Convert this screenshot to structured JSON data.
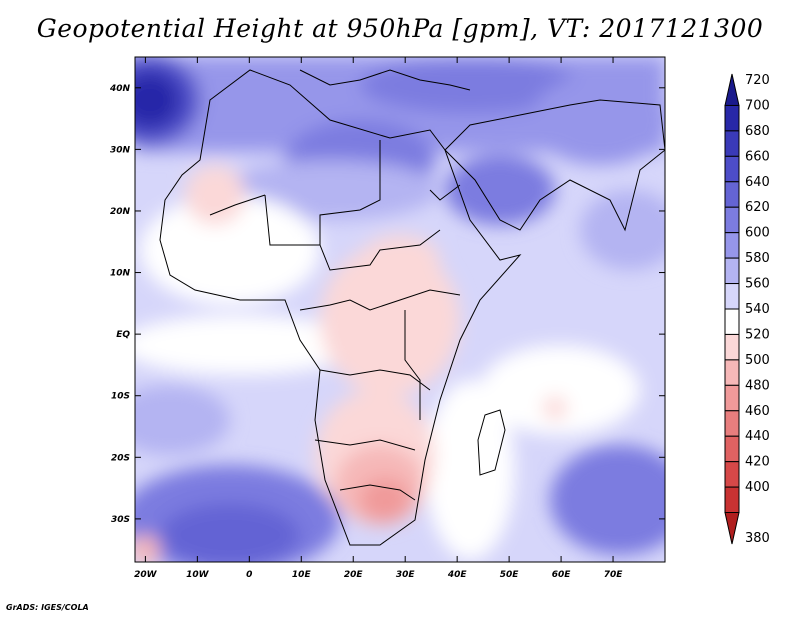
{
  "title": "Geopotential Height at 950hPa [gpm], VT: 2017121300",
  "credit": "GrADS: IGES/COLA",
  "map": {
    "lon_range": [
      -22,
      80
    ],
    "lat_range": [
      -37,
      45
    ],
    "lon_ticks": [
      {
        "value": -20,
        "label": "20W"
      },
      {
        "value": -10,
        "label": "10W"
      },
      {
        "value": 0,
        "label": "0"
      },
      {
        "value": 10,
        "label": "10E"
      },
      {
        "value": 20,
        "label": "20E"
      },
      {
        "value": 30,
        "label": "30E"
      },
      {
        "value": 40,
        "label": "40E"
      },
      {
        "value": 50,
        "label": "50E"
      },
      {
        "value": 60,
        "label": "60E"
      },
      {
        "value": 70,
        "label": "70E"
      }
    ],
    "lat_ticks": [
      {
        "value": 40,
        "label": "40N"
      },
      {
        "value": 30,
        "label": "30N"
      },
      {
        "value": 20,
        "label": "20N"
      },
      {
        "value": 10,
        "label": "10N"
      },
      {
        "value": 0,
        "label": "EQ"
      },
      {
        "value": -10,
        "label": "10S"
      },
      {
        "value": -20,
        "label": "20S"
      },
      {
        "value": -30,
        "label": "30S"
      }
    ]
  },
  "colorbar": {
    "levels": [
      {
        "value": "720",
        "color": "#1a1a8c"
      },
      {
        "value": "700",
        "color": "#2828a8"
      },
      {
        "value": "680",
        "color": "#3a3ab8"
      },
      {
        "value": "660",
        "color": "#4d4dc8"
      },
      {
        "value": "640",
        "color": "#6464d4"
      },
      {
        "value": "620",
        "color": "#7c7ce0"
      },
      {
        "value": "600",
        "color": "#9696ea"
      },
      {
        "value": "580",
        "color": "#b4b4f2"
      },
      {
        "value": "560",
        "color": "#d6d6fa"
      },
      {
        "value": "540",
        "color": "#ffffff"
      },
      {
        "value": "520",
        "color": "#fbd8d8"
      },
      {
        "value": "500",
        "color": "#f6b8b8"
      },
      {
        "value": "480",
        "color": "#f09a9a"
      },
      {
        "value": "460",
        "color": "#e87e7e"
      },
      {
        "value": "440",
        "color": "#e06262"
      },
      {
        "value": "420",
        "color": "#d64848"
      },
      {
        "value": "400",
        "color": "#c83232"
      },
      {
        "value": "380",
        "color": "#b01e1e"
      }
    ]
  },
  "colors": {
    "frame": "#000000",
    "background": "#ffffff"
  }
}
